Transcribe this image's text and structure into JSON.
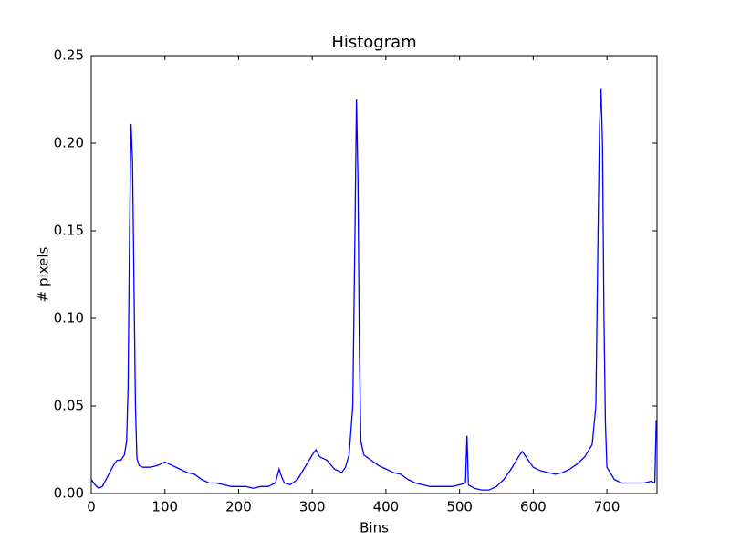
{
  "chart_data": {
    "type": "line",
    "title": "Histogram",
    "xlabel": "Bins",
    "ylabel": "# pixels",
    "x": [
      0,
      5,
      10,
      15,
      20,
      25,
      30,
      35,
      40,
      45,
      48,
      50,
      52,
      54,
      56,
      58,
      60,
      62,
      65,
      70,
      80,
      90,
      100,
      110,
      120,
      130,
      140,
      150,
      160,
      170,
      180,
      190,
      200,
      210,
      220,
      230,
      240,
      250,
      255,
      258,
      262,
      270,
      280,
      290,
      300,
      305,
      310,
      320,
      330,
      340,
      345,
      350,
      355,
      358,
      360,
      362,
      364,
      366,
      370,
      380,
      390,
      400,
      410,
      420,
      430,
      440,
      450,
      460,
      470,
      480,
      490,
      500,
      508,
      510,
      512,
      520,
      530,
      540,
      550,
      560,
      570,
      580,
      585,
      590,
      600,
      610,
      620,
      630,
      640,
      650,
      660,
      670,
      680,
      685,
      688,
      690,
      692,
      694,
      696,
      698,
      700,
      710,
      720,
      730,
      740,
      750,
      760,
      765,
      767
    ],
    "values": [
      0.008,
      0.005,
      0.003,
      0.004,
      0.008,
      0.012,
      0.016,
      0.019,
      0.019,
      0.022,
      0.03,
      0.06,
      0.15,
      0.211,
      0.19,
      0.12,
      0.05,
      0.02,
      0.016,
      0.015,
      0.015,
      0.016,
      0.018,
      0.016,
      0.014,
      0.012,
      0.011,
      0.008,
      0.006,
      0.006,
      0.005,
      0.004,
      0.004,
      0.004,
      0.003,
      0.004,
      0.004,
      0.006,
      0.014,
      0.01,
      0.006,
      0.005,
      0.008,
      0.015,
      0.022,
      0.025,
      0.021,
      0.019,
      0.014,
      0.012,
      0.015,
      0.022,
      0.05,
      0.15,
      0.225,
      0.18,
      0.08,
      0.03,
      0.022,
      0.019,
      0.016,
      0.014,
      0.012,
      0.011,
      0.008,
      0.006,
      0.005,
      0.004,
      0.004,
      0.004,
      0.004,
      0.005,
      0.006,
      0.033,
      0.005,
      0.003,
      0.002,
      0.002,
      0.004,
      0.008,
      0.014,
      0.021,
      0.024,
      0.021,
      0.015,
      0.013,
      0.012,
      0.011,
      0.012,
      0.014,
      0.017,
      0.021,
      0.028,
      0.05,
      0.15,
      0.21,
      0.231,
      0.2,
      0.1,
      0.04,
      0.015,
      0.008,
      0.006,
      0.006,
      0.006,
      0.006,
      0.007,
      0.006,
      0.042
    ],
    "color": "#0000ff",
    "xlim": [
      0,
      768
    ],
    "xticks": [
      0,
      100,
      200,
      300,
      400,
      500,
      600,
      700
    ],
    "ylim": [
      0,
      0.25
    ],
    "yticks": [
      {
        "value": 0,
        "label": "0.00"
      },
      {
        "value": 0.05,
        "label": "0.05"
      },
      {
        "value": 0.1,
        "label": "0.10"
      },
      {
        "value": 0.15,
        "label": "0.15"
      },
      {
        "value": 0.2,
        "label": "0.20"
      },
      {
        "value": 0.25,
        "label": "0.25"
      }
    ]
  }
}
